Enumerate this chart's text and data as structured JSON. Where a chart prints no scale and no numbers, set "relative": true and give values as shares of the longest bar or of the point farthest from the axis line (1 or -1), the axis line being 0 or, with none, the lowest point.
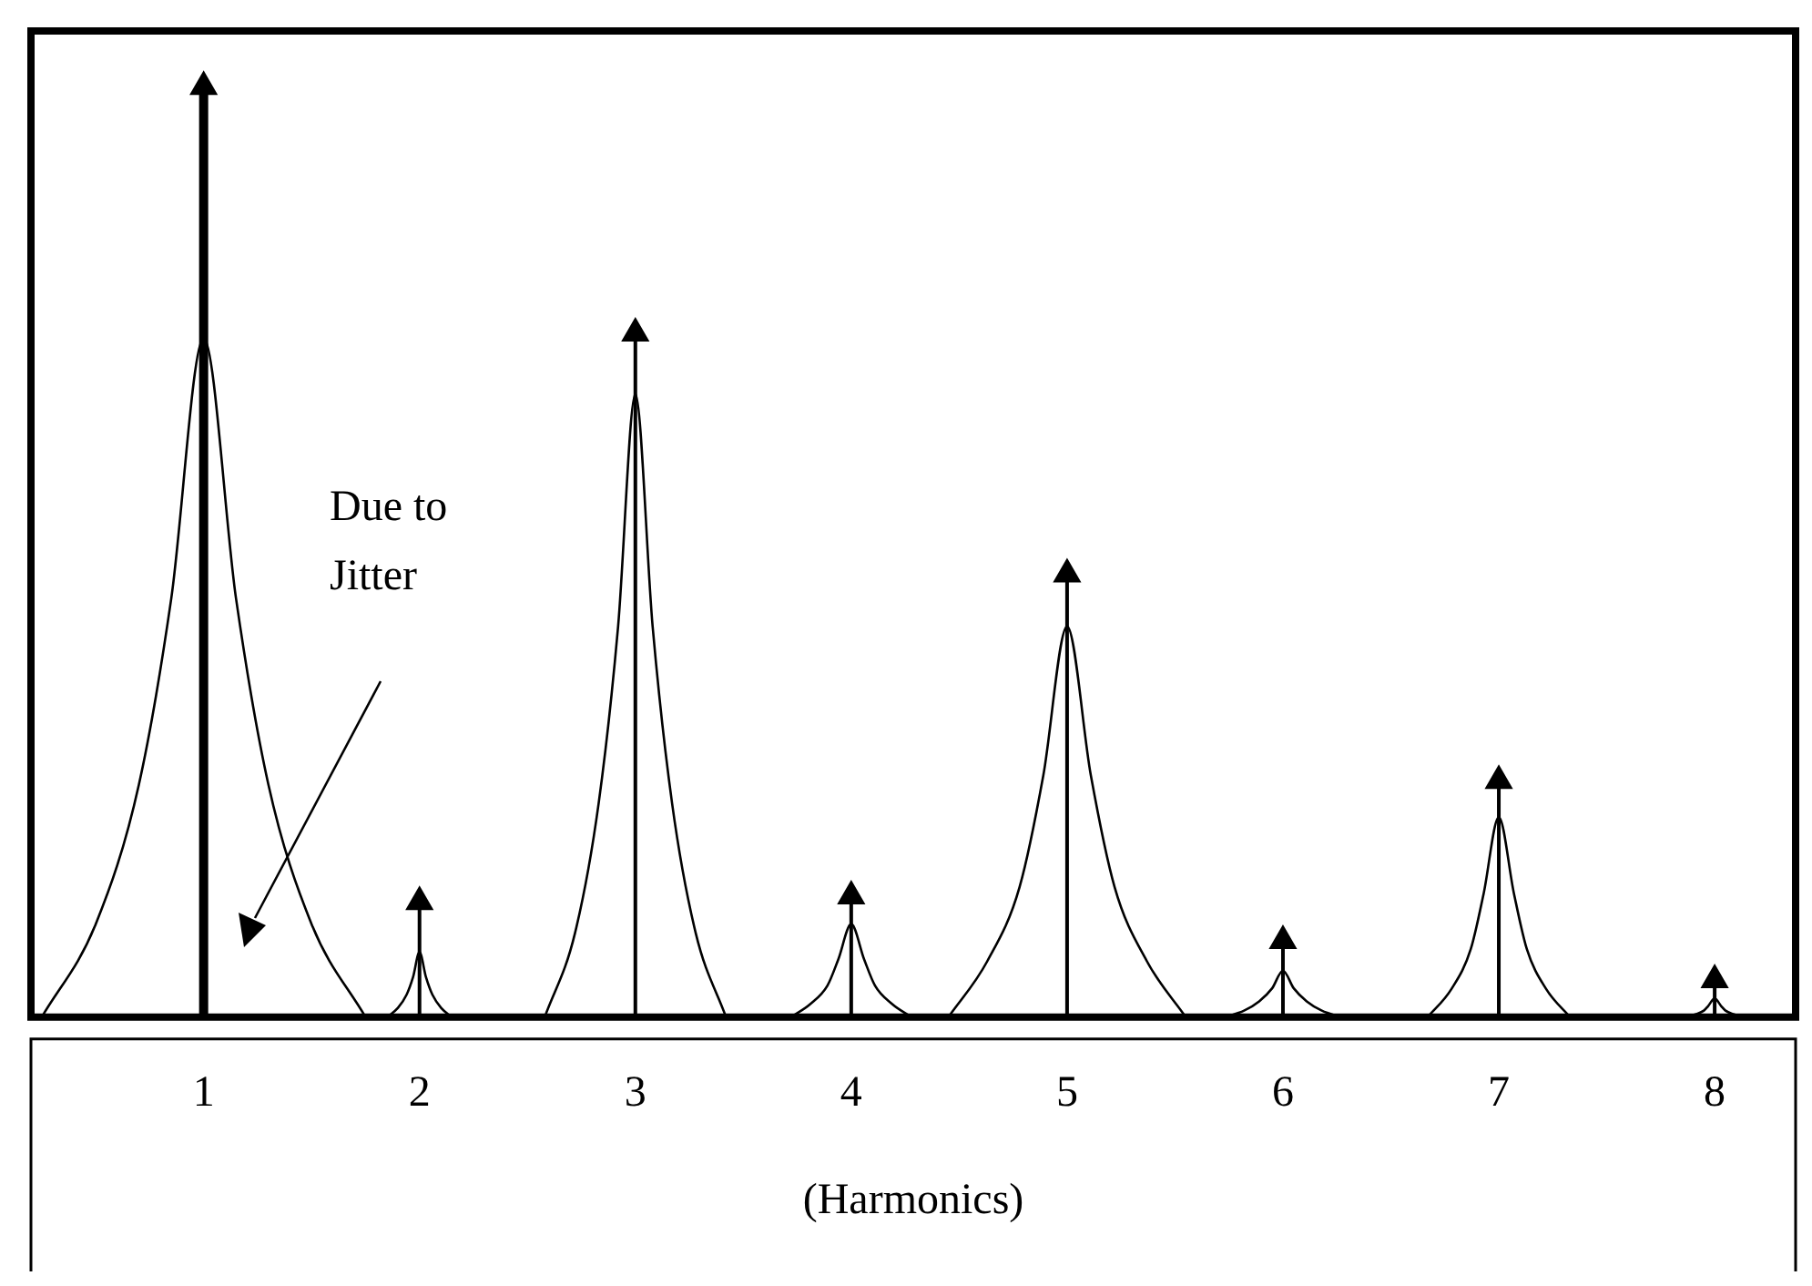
{
  "chart_data": {
    "type": "lollipop",
    "relative": true,
    "xlabel": "(Harmonics)",
    "xlim": [
      0.2,
      8.375
    ],
    "xticks": [
      1,
      2,
      3,
      4,
      5,
      6,
      7,
      8
    ],
    "series": [
      {
        "type": "lollipop",
        "color": "#000000",
        "marker": "triangle",
        "x": [
          1,
          2,
          3,
          4,
          5,
          6,
          7,
          8
        ],
        "values": [
          1,
          0.124,
          0.735,
          0.13,
          0.476,
          0.082,
          0.254,
          0.04
        ]
      },
      {
        "type": "line",
        "color": "#000000",
        "x": [
          0.25,
          0.5,
          0.7,
          0.85,
          1,
          1.15,
          1.3,
          1.5,
          1.75,
          1.8,
          1.85,
          1.9,
          1.94,
          1.97,
          2,
          2.03,
          2.06,
          2.1,
          2.15,
          2.4,
          2.58,
          2.72,
          2.83,
          2.92,
          3,
          3.08,
          3.17,
          3.28,
          3.42,
          3.6,
          3.72,
          3.81,
          3.89,
          3.94,
          4,
          4.06,
          4.11,
          4.19,
          4.28,
          4.4,
          4.45,
          4.63,
          4.78,
          4.89,
          5,
          5.11,
          5.22,
          5.37,
          5.55,
          5.65,
          5.73,
          5.82,
          5.89,
          5.95,
          6,
          6.05,
          6.11,
          6.18,
          6.27,
          6.5,
          6.67,
          6.78,
          6.87,
          6.93,
          7,
          7.07,
          7.13,
          7.22,
          7.33,
          7.6,
          7.87,
          7.91,
          7.95,
          7.97,
          8,
          8.03,
          8.05,
          8.09,
          8.13
        ],
        "values": [
          0,
          0.1,
          0.25,
          0.45,
          0.73,
          0.45,
          0.25,
          0.1,
          0,
          null,
          0,
          0.01,
          0.024,
          0.043,
          0.07,
          0.043,
          0.024,
          0.01,
          0,
          null,
          0,
          0.09,
          0.23,
          0.42,
          0.67,
          0.42,
          0.23,
          0.09,
          0,
          null,
          0,
          0.014,
          0.034,
          0.062,
          0.1,
          0.062,
          0.034,
          0.014,
          0,
          null,
          0,
          0.06,
          0.14,
          0.26,
          0.42,
          0.26,
          0.14,
          0.06,
          0,
          null,
          0,
          0.007,
          0.017,
          0.031,
          0.05,
          0.031,
          0.017,
          0.007,
          0,
          null,
          0,
          0.03,
          0.073,
          0.133,
          0.215,
          0.133,
          0.073,
          0.03,
          0,
          null,
          0,
          0.003,
          0.007,
          0.012,
          0.02,
          0.012,
          0.007,
          0.003,
          0
        ]
      }
    ],
    "grid": false,
    "legend": false,
    "annotations": [
      "Due to\nJitter"
    ]
  }
}
